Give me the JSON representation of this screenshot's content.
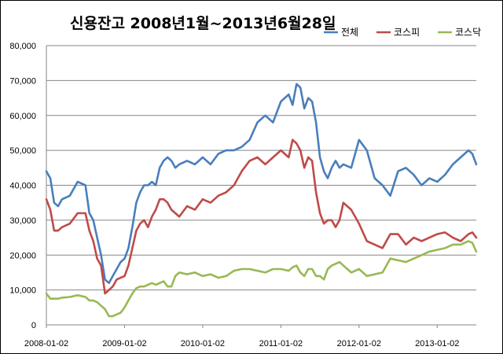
{
  "chart_data": {
    "type": "line",
    "title": "신용잔고  2008년1월~2013년6월28일",
    "xlabel": "",
    "ylabel": "",
    "ylim": [
      0,
      80000
    ],
    "yticks": [
      "80,000",
      "70,000",
      "60,000",
      "50,000",
      "40,000",
      "30,000",
      "20,000",
      "10,000",
      "0"
    ],
    "xticks": [
      "2008-01-02",
      "2009-01-02",
      "2010-01-02",
      "2011-01-02",
      "2012-01-02",
      "2013-01-02"
    ],
    "grid": true,
    "legend_position": "top-right",
    "x": [
      2008.0,
      2008.05,
      2008.1,
      2008.15,
      2008.2,
      2008.3,
      2008.4,
      2008.5,
      2008.55,
      2008.6,
      2008.65,
      2008.7,
      2008.75,
      2008.8,
      2008.85,
      2008.9,
      2008.95,
      2009.0,
      2009.05,
      2009.1,
      2009.15,
      2009.2,
      2009.25,
      2009.3,
      2009.35,
      2009.4,
      2009.45,
      2009.5,
      2009.55,
      2009.6,
      2009.65,
      2009.7,
      2009.8,
      2009.9,
      2010.0,
      2010.1,
      2010.2,
      2010.3,
      2010.4,
      2010.5,
      2010.6,
      2010.7,
      2010.8,
      2010.9,
      2011.0,
      2011.1,
      2011.15,
      2011.2,
      2011.25,
      2011.3,
      2011.35,
      2011.4,
      2011.45,
      2011.5,
      2011.55,
      2011.6,
      2011.65,
      2011.7,
      2011.75,
      2011.8,
      2011.9,
      2012.0,
      2012.1,
      2012.2,
      2012.3,
      2012.4,
      2012.5,
      2012.6,
      2012.7,
      2012.8,
      2012.9,
      2013.0,
      2013.1,
      2013.2,
      2013.3,
      2013.4,
      2013.45,
      2013.5
    ],
    "series": [
      {
        "name": "전체",
        "color": "#4a7ebb",
        "values": [
          44000,
          42000,
          35000,
          34000,
          36000,
          37000,
          41000,
          40000,
          32000,
          30000,
          25000,
          20000,
          13000,
          12000,
          14000,
          16000,
          18000,
          19000,
          22000,
          28000,
          35000,
          38000,
          40000,
          40000,
          41000,
          40000,
          45000,
          47000,
          48000,
          47000,
          45000,
          46000,
          47000,
          46000,
          48000,
          46000,
          49000,
          50000,
          50000,
          51000,
          53000,
          58000,
          60000,
          58000,
          64000,
          66000,
          63000,
          69000,
          68000,
          62000,
          65000,
          64000,
          58000,
          48000,
          44000,
          42000,
          45000,
          47000,
          45000,
          46000,
          45000,
          53000,
          50000,
          42000,
          40000,
          37000,
          44000,
          45000,
          43000,
          40000,
          42000,
          41000,
          43000,
          46000,
          48000,
          50000,
          49000,
          46000
        ]
      },
      {
        "name": "코스피",
        "color": "#be4b48",
        "values": [
          36000,
          33000,
          27000,
          27000,
          28000,
          29000,
          32000,
          32000,
          27000,
          24000,
          19000,
          17000,
          9000,
          10000,
          11000,
          13000,
          13500,
          14000,
          17000,
          22000,
          27000,
          29000,
          30000,
          28000,
          31000,
          33000,
          36000,
          36000,
          35000,
          33000,
          32000,
          31000,
          34000,
          33000,
          36000,
          35000,
          37000,
          38000,
          40000,
          44000,
          47000,
          48000,
          46000,
          48000,
          50000,
          48000,
          53000,
          52000,
          50000,
          45000,
          48000,
          47000,
          38000,
          32000,
          29000,
          30000,
          30000,
          28000,
          30000,
          35000,
          33000,
          29000,
          24000,
          23000,
          22000,
          26000,
          26000,
          23000,
          25000,
          24000,
          25000,
          26000,
          26500,
          25000,
          24000,
          26000,
          26500,
          25000
        ]
      },
      {
        "name": "코스닥",
        "color": "#98b954",
        "values": [
          9000,
          7500,
          7500,
          7500,
          7800,
          8000,
          8500,
          8000,
          7000,
          7000,
          6500,
          5500,
          4500,
          2500,
          2500,
          3000,
          3500,
          5000,
          7000,
          9000,
          10500,
          11000,
          11000,
          11500,
          12000,
          11500,
          12000,
          12500,
          11000,
          11000,
          14000,
          15000,
          14500,
          15000,
          14000,
          14500,
          13500,
          14000,
          15500,
          16000,
          16000,
          15500,
          15000,
          16000,
          16000,
          15500,
          16500,
          17000,
          15000,
          14000,
          16000,
          16000,
          14000,
          14000,
          13000,
          16000,
          17000,
          17500,
          18000,
          17000,
          15000,
          16000,
          14000,
          14500,
          15000,
          19000,
          18500,
          18000,
          19000,
          20000,
          21000,
          21500,
          22000,
          23000,
          23000,
          24000,
          23500,
          21000
        ]
      }
    ]
  }
}
